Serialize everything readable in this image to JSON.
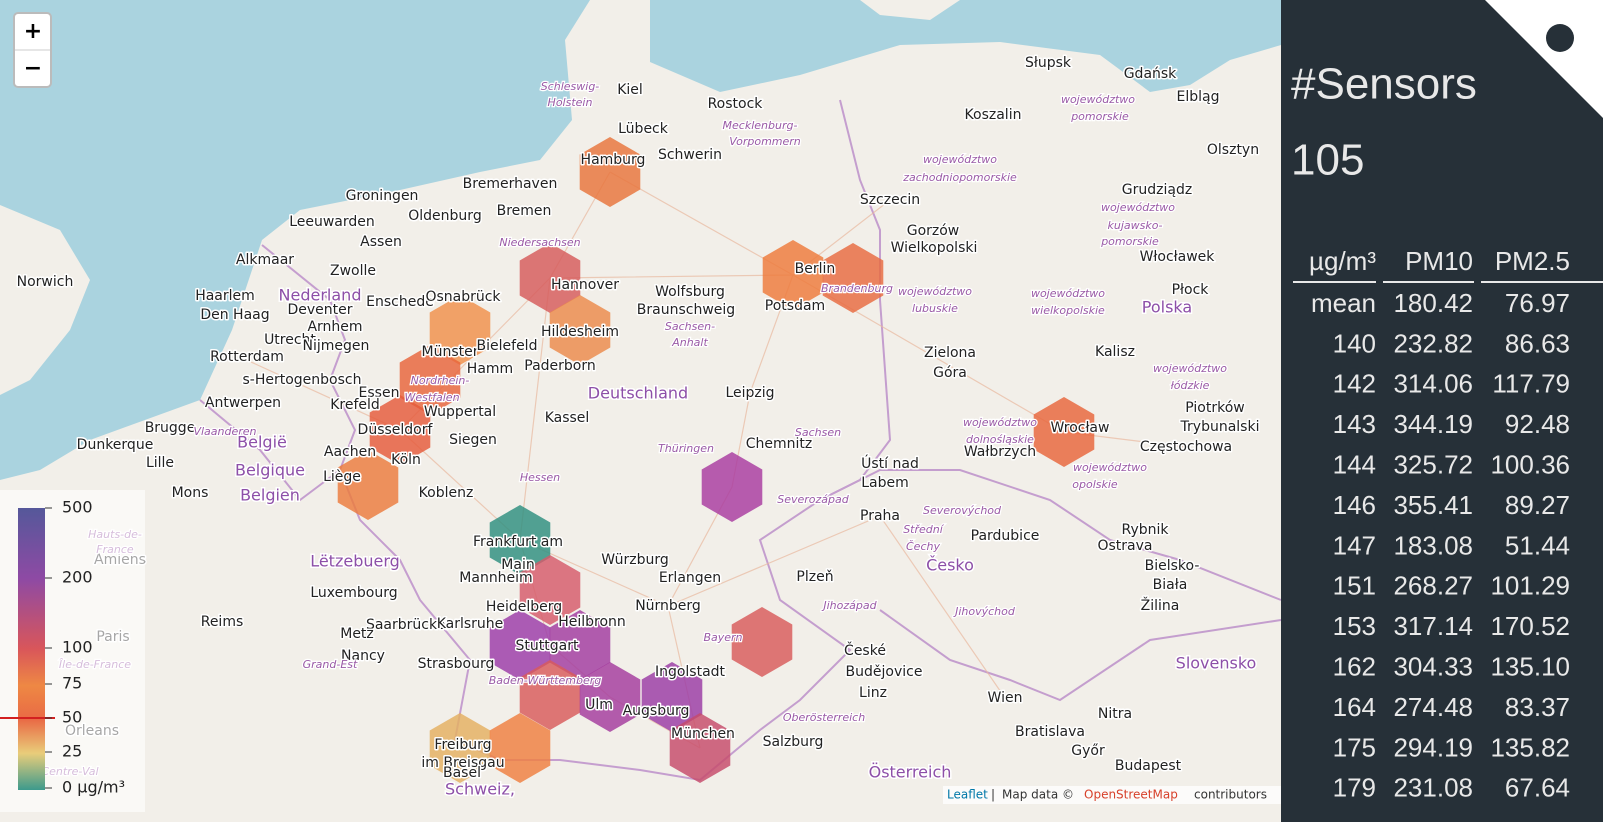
{
  "zoom": {
    "in": "+",
    "out": "−"
  },
  "map": {
    "labels": [
      "Kiel",
      "Schleswig-",
      "Holstein",
      "Rostock",
      "Lübeck",
      "Mecklenburg-",
      "Vorpommern",
      "Schwerin",
      "Hamburg",
      "Słupsk",
      "Gdańsk",
      "Elbląg",
      "Koszalin",
      "województwo",
      "pomorskie",
      "Olsztyn",
      "województwo",
      "zachodniopomorskie",
      "Bremerhaven",
      "Groningen",
      "Bremen",
      "Oldenburg",
      "Leeuwarden",
      "Szczecin",
      "Grudziądz",
      "województwo",
      "kujawsko-",
      "pomorskie",
      "Gorzów",
      "Wielkopolski",
      "Assen",
      "Niedersachsen",
      "Alkmaar",
      "Zwolle",
      "Włocławek",
      "Norwich",
      "Hannover",
      "Haarlem",
      "Nederland",
      "Enschede",
      "Osnabrück",
      "Wolfsburg",
      "Braunschweig",
      "Berlin",
      "Potsdam",
      "Brandenburg",
      "Płock",
      "Den Haag",
      "Deventer",
      "Arnhem",
      "Hildesheim",
      "Sachsen-",
      "Anhalt",
      "województwo",
      "lubuskie",
      "województwo",
      "wielkopolskie",
      "Polska",
      "Utrecht",
      "Rotterdam",
      "Nijmegen",
      "Münster",
      "Bielefeld",
      "Zielona",
      "Góra",
      "Kalisz",
      "s-Hertogenbosch",
      "Hamm",
      "Paderborn",
      "województwo",
      "łódzkie",
      "Antwerpen",
      "Essen",
      "Nordrhein-",
      "Westfalen",
      "Deutschland",
      "Leipzig",
      "Krefeld",
      "Wuppertal",
      "Kassel",
      "Piotrków",
      "Trybunalski",
      "Brugge",
      "Vlaanderen",
      "Düsseldorf",
      "Siegen",
      "België",
      "województwo",
      "dolnośląskie",
      "Wrocław",
      "Częstochowa",
      "Dunkerque",
      "Aachen",
      "Chemnitz",
      "Sachsen",
      "Thüringen",
      "Wałbrzych",
      "Lille",
      "Köln",
      "Belgique",
      "Ústí nad",
      "Labem",
      "województwo",
      "opolskie",
      "Mons",
      "Liège",
      "Belgien",
      "Koblenz",
      "Hessen",
      "Severozápad",
      "Severovýchod",
      "Praha",
      "Pardubice",
      "Ostrava",
      "Rybnik",
      "Frankfurt am",
      "Main",
      "Würzburg",
      "Střední",
      "Čechy",
      "Bielsko-",
      "Biała",
      "Amiens",
      "Lëtzebuerg",
      "Česko",
      "Mannheim",
      "Erlangen",
      "Plzeň",
      "Luxembourg",
      "Žilina",
      "Heidelberg",
      "Nürnberg",
      "Jihozápad",
      "Jihovýchod",
      "Reims",
      "Saarbrücken",
      "Karlsruhe",
      "Heilbronn",
      "Paris",
      "Metz",
      "Bayern",
      "České",
      "Budějovice",
      "Stuttgart",
      "Nancy",
      "Île-de-France",
      "Grand-Est",
      "Slovensko",
      "Strasbourg",
      "Ingolstadt",
      "Linz",
      "Baden-Württemberg",
      "Ulm",
      "Augsburg",
      "Wien",
      "Nitra",
      "Oberösterreich",
      "Bratislava",
      "München",
      "Salzburg",
      "Freiburg",
      "im Breisgau",
      "Basel",
      "Győr",
      "Budapest",
      "Österreich",
      "Orleans",
      "Schweiz,",
      "Centre-Val",
      "Hauts-de-",
      "France"
    ]
  },
  "legend": {
    "ticks": [
      "500",
      "200",
      "100",
      "75",
      "50",
      "25",
      "0 µg/m³"
    ]
  },
  "attribution": {
    "leaflet": "Leaflet",
    "separator": "|",
    "text": "Map data ©",
    "osm": "OpenStreetMap",
    "contributors": "contributors"
  },
  "sidebar": {
    "title": "#Sensors",
    "count": "105",
    "table": {
      "header": [
        "µg/m³",
        "PM10",
        "PM2.5"
      ],
      "rows": [
        [
          "mean",
          "180.42",
          "76.97"
        ],
        [
          "140",
          "232.82",
          "86.63"
        ],
        [
          "142",
          "314.06",
          "117.79"
        ],
        [
          "143",
          "344.19",
          "92.48"
        ],
        [
          "144",
          "325.72",
          "100.36"
        ],
        [
          "146",
          "355.41",
          "89.27"
        ],
        [
          "147",
          "183.08",
          "51.44"
        ],
        [
          "151",
          "268.27",
          "101.29"
        ],
        [
          "153",
          "317.14",
          "170.52"
        ],
        [
          "162",
          "304.33",
          "135.10"
        ],
        [
          "164",
          "274.48",
          "83.37"
        ],
        [
          "175",
          "294.19",
          "135.82"
        ],
        [
          "179",
          "231.08",
          "67.64"
        ]
      ]
    }
  }
}
